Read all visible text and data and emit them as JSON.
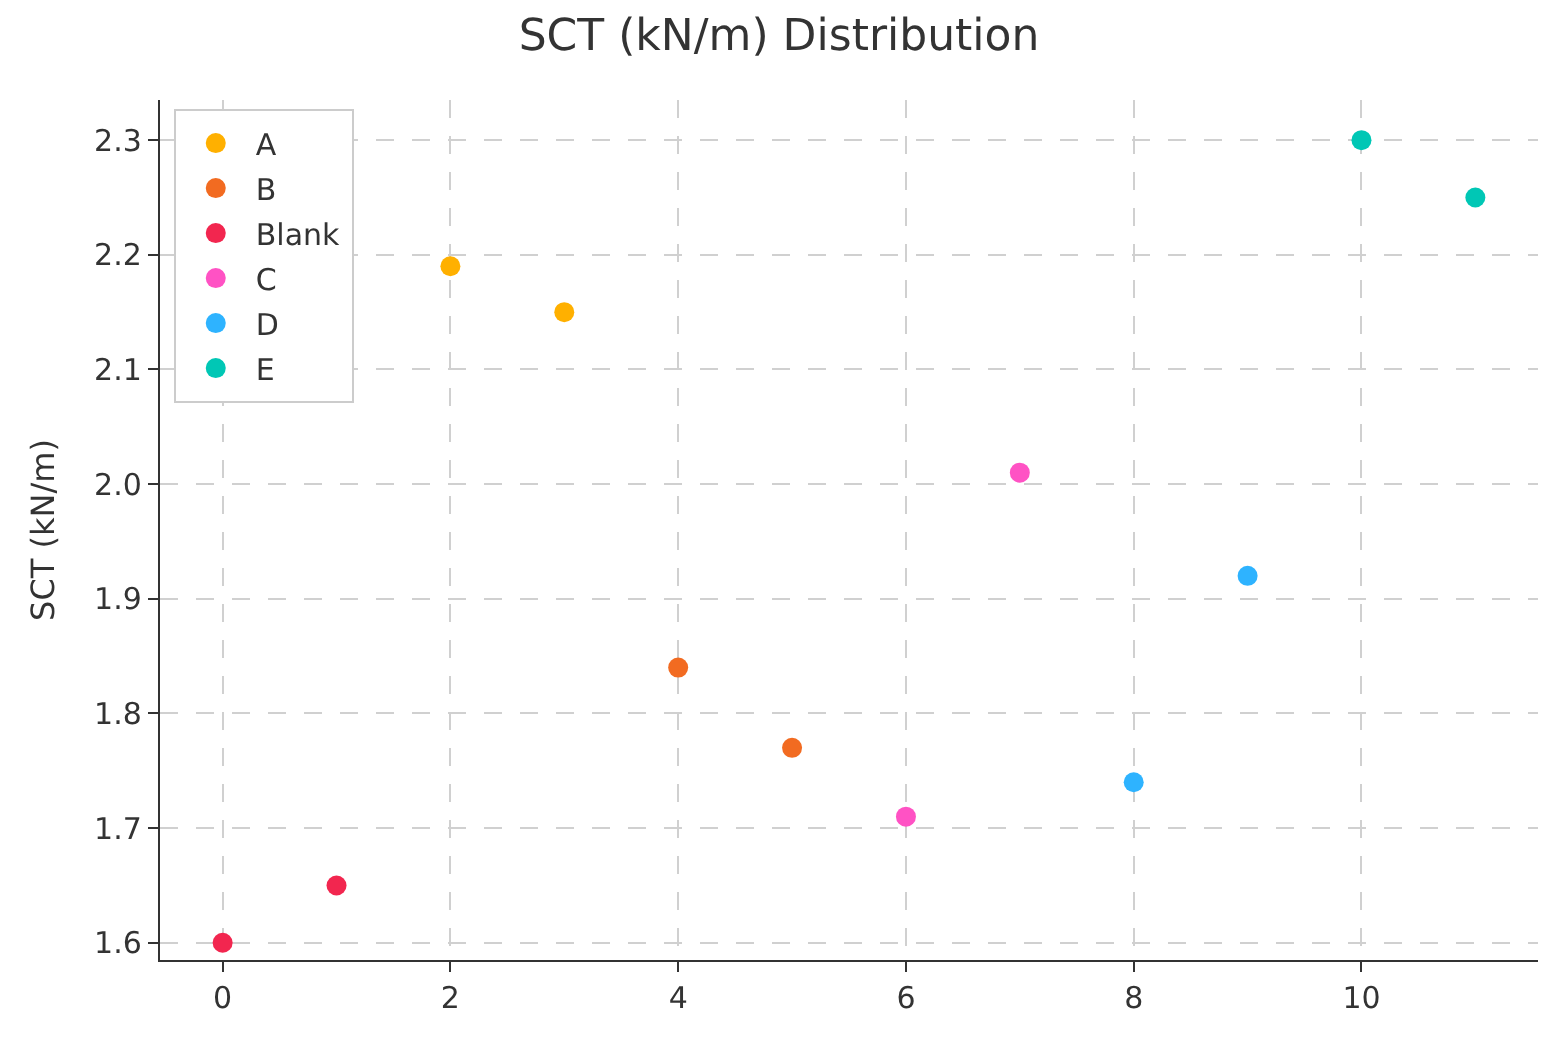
{
  "chart_data": {
    "type": "scatter",
    "title": "SCT (kN/m) Distribution",
    "ylabel": "SCT (kN/m)",
    "series": [
      {
        "name": "A",
        "color": "#ffb000",
        "x": [
          2,
          3
        ],
        "values": [
          2.19,
          2.15
        ]
      },
      {
        "name": "B",
        "color": "#f26b21",
        "x": [
          4,
          5
        ],
        "values": [
          1.84,
          1.77
        ]
      },
      {
        "name": "Blank",
        "color": "#f2264f",
        "x": [
          0,
          1
        ],
        "values": [
          1.6,
          1.65
        ]
      },
      {
        "name": "C",
        "color": "#ff52c4",
        "x": [
          6,
          7
        ],
        "values": [
          1.71,
          2.01
        ]
      },
      {
        "name": "D",
        "color": "#2eb3ff",
        "x": [
          8,
          9
        ],
        "values": [
          1.74,
          1.92
        ]
      },
      {
        "name": "E",
        "color": "#00c7b5",
        "x": [
          10,
          11
        ],
        "values": [
          2.3,
          2.25
        ]
      }
    ],
    "xlim": [
      -0.55,
      11.55
    ],
    "xticks": [
      0,
      2,
      4,
      6,
      8,
      10
    ],
    "ylim": [
      1.585,
      2.335
    ],
    "yticks": [
      1.6,
      1.7,
      1.8,
      1.9,
      {
        "value": 2,
        "label": "2.0"
      },
      2.1,
      2.2,
      2.3
    ],
    "grid": true,
    "legend": "top left",
    "marker": "circle"
  }
}
